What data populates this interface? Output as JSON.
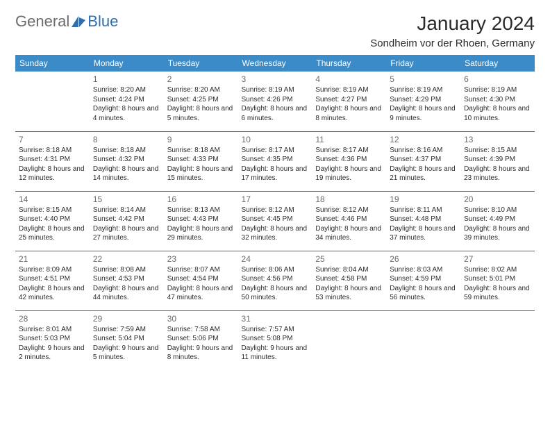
{
  "branding": {
    "word1": "General",
    "word2": "Blue",
    "word1_color": "#6b6b6b",
    "word2_color": "#2f6fb0",
    "icon_color": "#2f6fb0"
  },
  "title": "January 2024",
  "location": "Sondheim vor der Rhoen, Germany",
  "header_bg": "#3b8bc8",
  "header_fg": "#ffffff",
  "rule_color": "#3b6a94",
  "text_color": "#2b2b2b",
  "daynum_color": "#6b6b6b",
  "day_headers": [
    "Sunday",
    "Monday",
    "Tuesday",
    "Wednesday",
    "Thursday",
    "Friday",
    "Saturday"
  ],
  "weeks": [
    [
      null,
      {
        "n": "1",
        "sr": "8:20 AM",
        "ss": "4:24 PM",
        "dl": "8 hours and 4 minutes."
      },
      {
        "n": "2",
        "sr": "8:20 AM",
        "ss": "4:25 PM",
        "dl": "8 hours and 5 minutes."
      },
      {
        "n": "3",
        "sr": "8:19 AM",
        "ss": "4:26 PM",
        "dl": "8 hours and 6 minutes."
      },
      {
        "n": "4",
        "sr": "8:19 AM",
        "ss": "4:27 PM",
        "dl": "8 hours and 8 minutes."
      },
      {
        "n": "5",
        "sr": "8:19 AM",
        "ss": "4:29 PM",
        "dl": "8 hours and 9 minutes."
      },
      {
        "n": "6",
        "sr": "8:19 AM",
        "ss": "4:30 PM",
        "dl": "8 hours and 10 minutes."
      }
    ],
    [
      {
        "n": "7",
        "sr": "8:18 AM",
        "ss": "4:31 PM",
        "dl": "8 hours and 12 minutes."
      },
      {
        "n": "8",
        "sr": "8:18 AM",
        "ss": "4:32 PM",
        "dl": "8 hours and 14 minutes."
      },
      {
        "n": "9",
        "sr": "8:18 AM",
        "ss": "4:33 PM",
        "dl": "8 hours and 15 minutes."
      },
      {
        "n": "10",
        "sr": "8:17 AM",
        "ss": "4:35 PM",
        "dl": "8 hours and 17 minutes."
      },
      {
        "n": "11",
        "sr": "8:17 AM",
        "ss": "4:36 PM",
        "dl": "8 hours and 19 minutes."
      },
      {
        "n": "12",
        "sr": "8:16 AM",
        "ss": "4:37 PM",
        "dl": "8 hours and 21 minutes."
      },
      {
        "n": "13",
        "sr": "8:15 AM",
        "ss": "4:39 PM",
        "dl": "8 hours and 23 minutes."
      }
    ],
    [
      {
        "n": "14",
        "sr": "8:15 AM",
        "ss": "4:40 PM",
        "dl": "8 hours and 25 minutes."
      },
      {
        "n": "15",
        "sr": "8:14 AM",
        "ss": "4:42 PM",
        "dl": "8 hours and 27 minutes."
      },
      {
        "n": "16",
        "sr": "8:13 AM",
        "ss": "4:43 PM",
        "dl": "8 hours and 29 minutes."
      },
      {
        "n": "17",
        "sr": "8:12 AM",
        "ss": "4:45 PM",
        "dl": "8 hours and 32 minutes."
      },
      {
        "n": "18",
        "sr": "8:12 AM",
        "ss": "4:46 PM",
        "dl": "8 hours and 34 minutes."
      },
      {
        "n": "19",
        "sr": "8:11 AM",
        "ss": "4:48 PM",
        "dl": "8 hours and 37 minutes."
      },
      {
        "n": "20",
        "sr": "8:10 AM",
        "ss": "4:49 PM",
        "dl": "8 hours and 39 minutes."
      }
    ],
    [
      {
        "n": "21",
        "sr": "8:09 AM",
        "ss": "4:51 PM",
        "dl": "8 hours and 42 minutes."
      },
      {
        "n": "22",
        "sr": "8:08 AM",
        "ss": "4:53 PM",
        "dl": "8 hours and 44 minutes."
      },
      {
        "n": "23",
        "sr": "8:07 AM",
        "ss": "4:54 PM",
        "dl": "8 hours and 47 minutes."
      },
      {
        "n": "24",
        "sr": "8:06 AM",
        "ss": "4:56 PM",
        "dl": "8 hours and 50 minutes."
      },
      {
        "n": "25",
        "sr": "8:04 AM",
        "ss": "4:58 PM",
        "dl": "8 hours and 53 minutes."
      },
      {
        "n": "26",
        "sr": "8:03 AM",
        "ss": "4:59 PM",
        "dl": "8 hours and 56 minutes."
      },
      {
        "n": "27",
        "sr": "8:02 AM",
        "ss": "5:01 PM",
        "dl": "8 hours and 59 minutes."
      }
    ],
    [
      {
        "n": "28",
        "sr": "8:01 AM",
        "ss": "5:03 PM",
        "dl": "9 hours and 2 minutes."
      },
      {
        "n": "29",
        "sr": "7:59 AM",
        "ss": "5:04 PM",
        "dl": "9 hours and 5 minutes."
      },
      {
        "n": "30",
        "sr": "7:58 AM",
        "ss": "5:06 PM",
        "dl": "9 hours and 8 minutes."
      },
      {
        "n": "31",
        "sr": "7:57 AM",
        "ss": "5:08 PM",
        "dl": "9 hours and 11 minutes."
      },
      null,
      null,
      null
    ]
  ],
  "labels": {
    "sunrise": "Sunrise:",
    "sunset": "Sunset:",
    "daylight": "Daylight:"
  }
}
